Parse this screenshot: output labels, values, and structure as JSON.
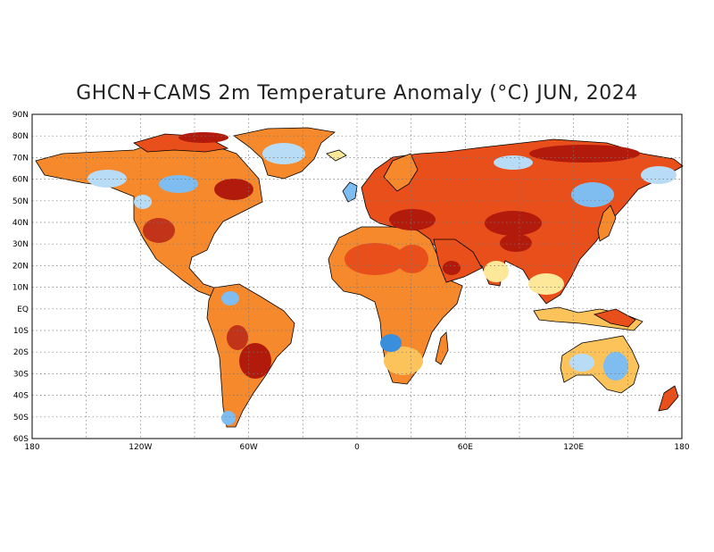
{
  "title": "GHCN+CAMS 2m Temperature Anomaly (°C) JUN, 2024",
  "map": {
    "projection": "equirectangular",
    "lon_range": [
      -180,
      180
    ],
    "lat_range": [
      -60,
      90
    ],
    "graticule": "dotted",
    "lat_ticks": [
      "90N",
      "80N",
      "70N",
      "60N",
      "50N",
      "40N",
      "30N",
      "20N",
      "10N",
      "EQ",
      "10S",
      "20S",
      "30S",
      "40S",
      "50S",
      "60S"
    ],
    "lon_ticks": [
      "180",
      "120W",
      "60W",
      "0",
      "60E",
      "120E",
      "180"
    ],
    "colors": {
      "strong_warm": "#b21b0c",
      "warm": "#e94f1b",
      "moderate_warm": "#f5892c",
      "mild_warm": "#fcc35a",
      "slight_warm": "#fde89a",
      "slight_cool": "#b9dcf6",
      "cool": "#7fbcef",
      "strong_cool": "#3a8fdd",
      "coastline": "#000000"
    }
  }
}
